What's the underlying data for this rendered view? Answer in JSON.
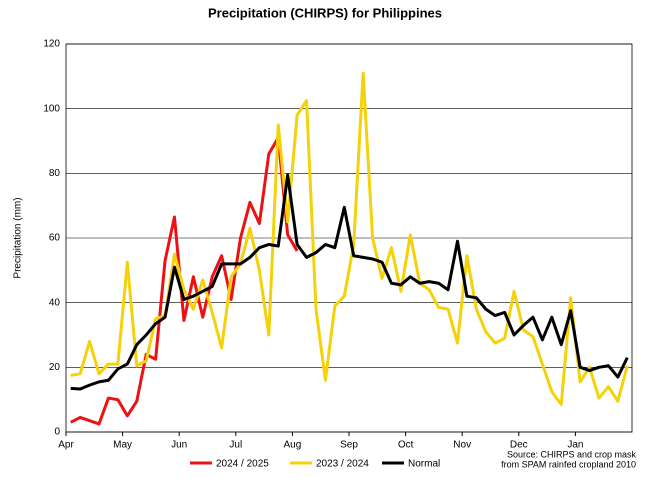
{
  "chart_data": {
    "type": "line",
    "title": "Precipitation (CHIRPS) for Philippines",
    "y_label": "Precipitation (mm)",
    "source": [
      "Source: CHIRPS and crop mask",
      "from SPAM rainfed cropland 2010"
    ],
    "categories": [
      "Apr",
      null,
      null,
      null,
      null,
      null,
      "May",
      null,
      null,
      null,
      null,
      null,
      "Jun",
      null,
      null,
      null,
      null,
      null,
      "Jul",
      null,
      null,
      null,
      null,
      null,
      "Aug",
      null,
      null,
      null,
      null,
      null,
      "Sep",
      null,
      null,
      null,
      null,
      null,
      "Oct",
      null,
      null,
      null,
      null,
      null,
      "Nov",
      null,
      null,
      null,
      null,
      null,
      "Dec",
      null,
      null,
      null,
      null,
      null,
      "Jan",
      null,
      null,
      null,
      null,
      null
    ],
    "ylim": [
      0,
      120
    ],
    "yticks": [
      0,
      20,
      40,
      60,
      80,
      100,
      120
    ],
    "grid": true,
    "series": [
      {
        "name": "2024 / 2025",
        "color": "#ee1111",
        "values": [
          3,
          4.5,
          3.5,
          2.5,
          10.5,
          10,
          5,
          9.5,
          24,
          22.5,
          53,
          66.5,
          34.5,
          48,
          35.5,
          48,
          54.5,
          41,
          60,
          71,
          64.5,
          86,
          91,
          61,
          56,
          null,
          null,
          null,
          null,
          null,
          null,
          null,
          null,
          null,
          null,
          null,
          null,
          null,
          null,
          null,
          null,
          null,
          null,
          null,
          null,
          null,
          null,
          null,
          null,
          null,
          null,
          null,
          null,
          null,
          null,
          null,
          null,
          null,
          null,
          null
        ]
      },
      {
        "name": "2023 / 2024",
        "color": "#f5d10a",
        "values": [
          17.5,
          18,
          28,
          18,
          21,
          21,
          52.5,
          20.5,
          22,
          35,
          36,
          55,
          44,
          38,
          47,
          37,
          26,
          48,
          52,
          63,
          50,
          30,
          95,
          65,
          98,
          102.5,
          38,
          16,
          39,
          42,
          58,
          111,
          60,
          47.5,
          57,
          43.5,
          61,
          46,
          44,
          38.5,
          38,
          27.5,
          54.5,
          38,
          31,
          27.5,
          29,
          43.5,
          31.5,
          29.5,
          21,
          12.5,
          8.5,
          41.5,
          15.5,
          20,
          10.5,
          14,
          9.5,
          20.5
        ]
      },
      {
        "name": "Normal",
        "color": "#000000",
        "values": [
          13.5,
          13.3,
          14.5,
          15.5,
          16,
          19.5,
          21,
          27,
          30,
          33.5,
          35.5,
          51,
          41,
          42,
          43.5,
          45,
          52,
          52,
          52,
          54,
          57,
          58,
          57.5,
          79.5,
          58,
          54,
          55.5,
          58,
          57,
          69.5,
          54.5,
          54,
          53.5,
          52.5,
          46,
          45.5,
          48,
          46,
          46.5,
          46,
          44,
          59,
          42,
          41.5,
          38,
          36,
          37,
          30,
          33,
          35.5,
          28.5,
          35.5,
          27,
          37.5,
          20,
          19,
          20,
          20.5,
          17,
          23
        ]
      }
    ]
  }
}
